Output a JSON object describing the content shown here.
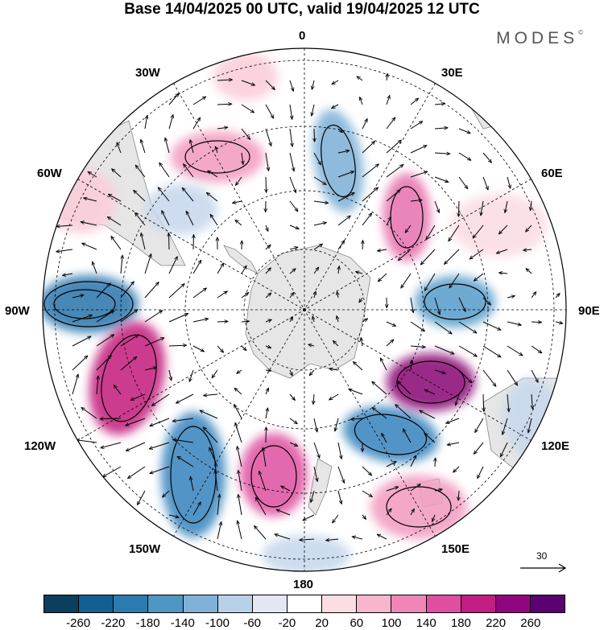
{
  "header": {
    "title": "Base 14/04/2025 00 UTC, valid 19/04/2025 12 UTC",
    "brand": "MODES"
  },
  "map": {
    "projection": "south-polar-stereographic",
    "lon_labels": {
      "l0": "0",
      "l30e": "30E",
      "l60e": "60E",
      "l90e": "90E",
      "l120e": "120E",
      "l150e": "150E",
      "l180": "180",
      "l150w": "150W",
      "l120w": "120W",
      "l90w": "90W",
      "l60w": "60W",
      "l30w": "30W"
    },
    "land_color": "#e6e6e6",
    "coast_color": "#888888",
    "anomalies": [
      {
        "name": "low-south-america-west",
        "value": -220,
        "color": "#2e78ae"
      },
      {
        "name": "high-pacific-east",
        "value": 220,
        "color": "#c4237f"
      },
      {
        "name": "low-pacific-central",
        "value": -200,
        "color": "#3a86bf"
      },
      {
        "name": "high-ross-sea",
        "value": 160,
        "color": "#e055a3"
      },
      {
        "name": "low-south-of-australia",
        "value": -200,
        "color": "#3a86bf"
      },
      {
        "name": "high-southern-indian",
        "value": 240,
        "color": "#8d1177"
      },
      {
        "name": "low-indian-east",
        "value": -150,
        "color": "#5a9ecb"
      },
      {
        "name": "high-indian-west",
        "value": 150,
        "color": "#e774b1"
      },
      {
        "name": "low-south-africa",
        "value": -120,
        "color": "#7fb1d7"
      },
      {
        "name": "high-south-atlantic",
        "value": 120,
        "color": "#f29cc1"
      },
      {
        "name": "high-tasman",
        "value": 120,
        "color": "#f29cc1"
      }
    ]
  },
  "colorbar": {
    "colors": [
      "#0c3e5e",
      "#125f92",
      "#2b7bb0",
      "#4f96c3",
      "#80b2d7",
      "#b9d1e8",
      "#e4e6f3",
      "#ffffff",
      "#fbdde3",
      "#f8b6cc",
      "#f086b6",
      "#e04f9f",
      "#c11d83",
      "#91067f",
      "#5a0070"
    ],
    "ticks": [
      "-260",
      "-220",
      "-180",
      "-140",
      "-100",
      "-60",
      "-20",
      "20",
      "60",
      "100",
      "140",
      "180",
      "220",
      "260"
    ]
  },
  "reference_vector": {
    "label": "30"
  }
}
